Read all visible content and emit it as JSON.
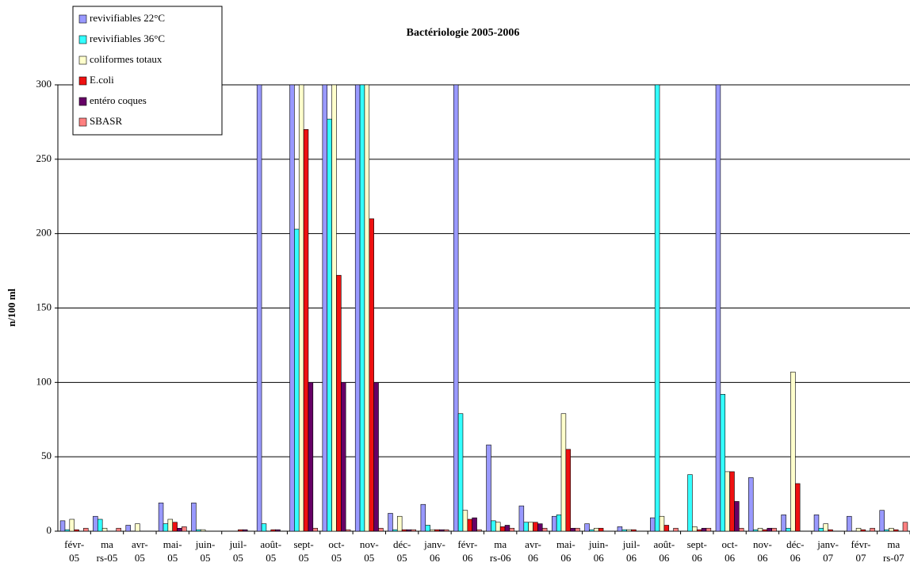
{
  "chart_data": {
    "type": "bar",
    "title": "Bactériologie 2005-2006",
    "ylabel": "n/100 ml",
    "categories": [
      "févr-05",
      "mars-05",
      "avr-05",
      "mai-05",
      "juin-05",
      "juil-05",
      "août-05",
      "sept-05",
      "oct-05",
      "nov-05",
      "déc-05",
      "janv-06",
      "févr-06",
      "mars-06",
      "avr-06",
      "mai-06",
      "juin-06",
      "juil-06",
      "août-06",
      "sept-06",
      "oct-06",
      "nov-06",
      "déc-06",
      "janv-07",
      "févr-07",
      "mars-07"
    ],
    "series": [
      {
        "name": "revivifiables 22°C",
        "color": "#9999ff",
        "values": [
          7,
          10,
          4,
          19,
          19,
          0,
          300,
          300,
          300,
          300,
          12,
          18,
          300,
          58,
          17,
          10,
          5,
          3,
          9,
          0,
          300,
          36,
          11,
          11,
          10,
          14
        ]
      },
      {
        "name": "revivifiables 36°C",
        "color": "#33ffff",
        "values": [
          1,
          8,
          0,
          5,
          1,
          0,
          5,
          203,
          277,
          300,
          1,
          4,
          79,
          7,
          6,
          11,
          1,
          1,
          300,
          38,
          92,
          1,
          2,
          2,
          0,
          1
        ]
      },
      {
        "name": "coliformes totaux",
        "color": "#ffffcc",
        "values": [
          8,
          2,
          5,
          8,
          1,
          0,
          0,
          300,
          300,
          300,
          10,
          1,
          14,
          6,
          6,
          79,
          2,
          1,
          10,
          3,
          40,
          2,
          107,
          5,
          2,
          2
        ]
      },
      {
        "name": "E.coli",
        "color": "#ee1111",
        "values": [
          1,
          0,
          0,
          6,
          0,
          1,
          1,
          270,
          172,
          210,
          1,
          1,
          8,
          3,
          6,
          55,
          2,
          1,
          4,
          1,
          40,
          1,
          32,
          1,
          1,
          1
        ]
      },
      {
        "name": "entéro coques",
        "color": "#660066",
        "values": [
          0,
          0,
          0,
          2,
          0,
          1,
          1,
          100,
          100,
          100,
          1,
          1,
          9,
          4,
          5,
          2,
          0,
          0,
          0,
          2,
          20,
          2,
          0,
          0,
          0,
          0
        ]
      },
      {
        "name": "SBASR",
        "color": "#ff8080",
        "values": [
          2,
          2,
          0,
          3,
          0,
          0,
          0,
          2,
          1,
          2,
          1,
          1,
          1,
          2,
          2,
          2,
          0,
          0,
          2,
          2,
          2,
          2,
          0,
          0,
          2,
          6
        ]
      }
    ],
    "ylim": [
      0,
      300
    ],
    "yticks": [
      0,
      50,
      100,
      150,
      200,
      250,
      300
    ],
    "grid": true,
    "legend": "upper left"
  }
}
